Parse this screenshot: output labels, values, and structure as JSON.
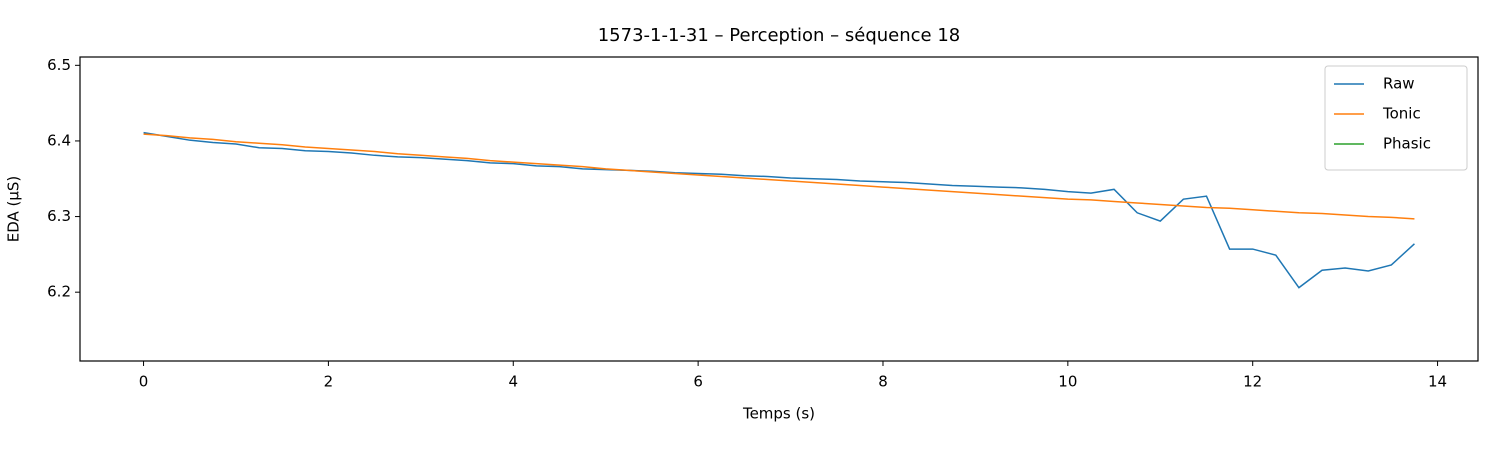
{
  "chart_data": {
    "type": "line",
    "title": "1573-1-1-31 – Perception – séquence 18",
    "xlabel": "Temps (s)",
    "ylabel": "EDA (µS)",
    "x": [
      0,
      0.25,
      0.5,
      0.75,
      1,
      1.25,
      1.5,
      1.75,
      2,
      2.25,
      2.5,
      2.75,
      3,
      3.25,
      3.5,
      3.75,
      4,
      4.25,
      4.5,
      4.75,
      5,
      5.25,
      5.5,
      5.75,
      6,
      6.25,
      6.5,
      6.75,
      7,
      7.25,
      7.5,
      7.75,
      8,
      8.25,
      8.5,
      8.75,
      9,
      9.25,
      9.5,
      9.75,
      10,
      10.25,
      10.5,
      10.75,
      11,
      11.25,
      11.5,
      11.75,
      12,
      12.25,
      12.5,
      12.75,
      13,
      13.25,
      13.5,
      13.75
    ],
    "series": [
      {
        "name": "Raw",
        "color": "#1f77b4",
        "values": [
          6.411,
          6.406,
          6.401,
          6.398,
          6.396,
          6.391,
          6.39,
          6.387,
          6.386,
          6.384,
          6.381,
          6.379,
          6.378,
          6.376,
          6.374,
          6.371,
          6.37,
          6.367,
          6.366,
          6.363,
          6.362,
          6.361,
          6.36,
          6.358,
          6.357,
          6.356,
          6.354,
          6.353,
          6.351,
          6.35,
          6.349,
          6.347,
          6.346,
          6.345,
          6.343,
          6.341,
          6.34,
          6.339,
          6.338,
          6.336,
          6.333,
          6.331,
          6.336,
          6.305,
          6.294,
          6.323,
          6.327,
          6.257,
          6.257,
          6.249,
          6.206,
          6.229,
          6.232,
          6.228,
          6.236,
          6.264
        ]
      },
      {
        "name": "Tonic",
        "color": "#ff7f0e",
        "values": [
          6.409,
          6.407,
          6.404,
          6.402,
          6.399,
          6.397,
          6.395,
          6.392,
          6.39,
          6.388,
          6.386,
          6.383,
          6.381,
          6.379,
          6.377,
          6.374,
          6.372,
          6.37,
          6.368,
          6.366,
          6.363,
          6.361,
          6.359,
          6.357,
          6.355,
          6.353,
          6.351,
          6.349,
          6.347,
          6.345,
          6.343,
          6.341,
          6.339,
          6.337,
          6.335,
          6.333,
          6.331,
          6.329,
          6.327,
          6.325,
          6.323,
          6.322,
          6.32,
          6.318,
          6.316,
          6.314,
          6.312,
          6.311,
          6.309,
          6.307,
          6.305,
          6.304,
          6.302,
          6.3,
          6.299,
          6.297
        ]
      },
      {
        "name": "Phasic",
        "color": "#2ca02c",
        "values": [
          null,
          null,
          null,
          null,
          null,
          null,
          null,
          null,
          null,
          null,
          null,
          null,
          null,
          null,
          null,
          null,
          null,
          null,
          null,
          null,
          null,
          null,
          null,
          null,
          null,
          null,
          null,
          null,
          null,
          null,
          null,
          null,
          null,
          null,
          null,
          null,
          null,
          null,
          null,
          null,
          null,
          null,
          null,
          null,
          null,
          null,
          null,
          null,
          null,
          null,
          null,
          null,
          null,
          null,
          null,
          null
        ]
      }
    ],
    "xlim": [
      -0.6875,
      14.4375
    ],
    "xticks": [
      0,
      2,
      4,
      6,
      8,
      10,
      12,
      14
    ],
    "ylim": [
      6.109,
      6.511
    ],
    "yticks": [
      6.2,
      6.3,
      6.4,
      6.5
    ],
    "legend": "upper right",
    "grid": false
  }
}
